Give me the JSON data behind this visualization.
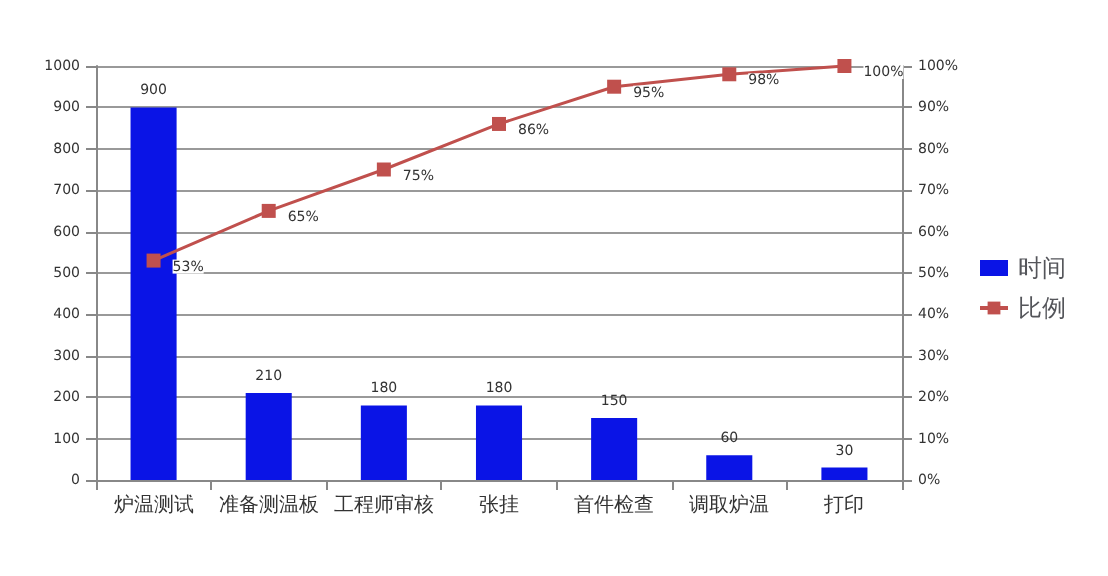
{
  "chart_data": {
    "type": "bar",
    "categories": [
      "炉温测试",
      "准备测温板",
      "工程师审核",
      "张挂",
      "首件检查",
      "调取炉温",
      "打印"
    ],
    "series": [
      {
        "name": "时间",
        "color": "#0a14e6",
        "values": [
          900,
          210,
          180,
          180,
          150,
          60,
          30
        ],
        "data_labels": true
      },
      {
        "name": "比例",
        "type": "line",
        "axis": "y2",
        "color": "#c0504d",
        "marker": "square",
        "values": [
          53,
          65,
          75,
          86,
          95,
          98,
          100
        ],
        "value_labels": [
          "53%",
          "65%",
          "75%",
          "86%",
          "95%",
          "98%",
          "100%"
        ]
      }
    ],
    "ylim": [
      0,
      1000
    ],
    "yticks": [
      0,
      100,
      200,
      300,
      400,
      500,
      600,
      700,
      800,
      900,
      1000
    ],
    "y2lim": [
      0,
      100
    ],
    "y2ticks": [
      {
        "value": 0,
        "label": "0%"
      },
      {
        "value": 10,
        "label": "10%"
      },
      {
        "value": 20,
        "label": "20%"
      },
      {
        "value": 30,
        "label": "30%"
      },
      {
        "value": 40,
        "label": "40%"
      },
      {
        "value": 50,
        "label": "50%"
      },
      {
        "value": 60,
        "label": "60%"
      },
      {
        "value": 70,
        "label": "70%"
      },
      {
        "value": 80,
        "label": "80%"
      },
      {
        "value": 90,
        "label": "90%"
      },
      {
        "value": 100,
        "label": "100%"
      }
    ],
    "grid": "y",
    "legend": "right"
  }
}
